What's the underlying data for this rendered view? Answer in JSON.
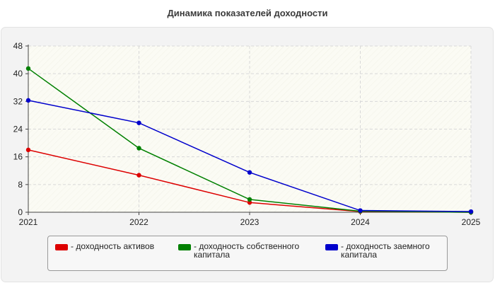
{
  "chart_data": {
    "type": "line",
    "title": "Динамика показателей доходности",
    "xlabel": "",
    "ylabel": "",
    "categories": [
      "2021",
      "2022",
      "2023",
      "2024",
      "2025"
    ],
    "ylim": [
      0,
      48
    ],
    "yticks": [
      "0",
      "8",
      "16",
      "24",
      "32",
      "40",
      "48"
    ],
    "grid": true,
    "legend_position": "bottom",
    "series": [
      {
        "name": "- доходность активов",
        "color": "#dd0000",
        "values": [
          18.0,
          10.7,
          2.8,
          0.2,
          0.0
        ]
      },
      {
        "name": "- доходность собственного капитала",
        "color": "#008000",
        "values": [
          41.5,
          18.5,
          3.7,
          0.3,
          0.0
        ]
      },
      {
        "name": "- доходность заемного капитала",
        "color": "#0000cc",
        "values": [
          32.3,
          25.8,
          11.5,
          0.5,
          0.2
        ]
      }
    ]
  }
}
